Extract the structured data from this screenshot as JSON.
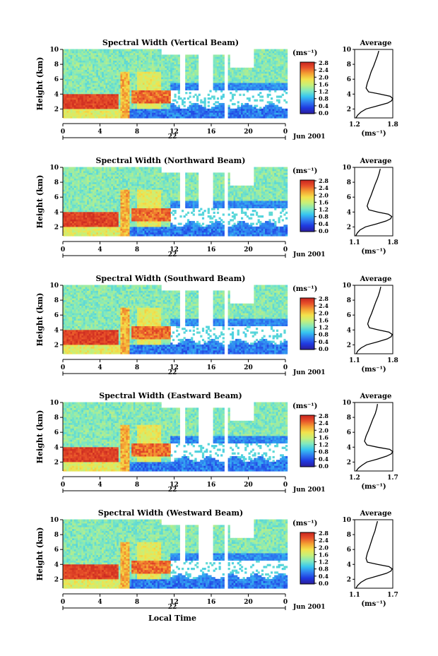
{
  "chart_data": {
    "type": "heatmap",
    "date_label": "Jun 2001",
    "day_label": "22",
    "xlabel": "Local Time",
    "ylabel": "Height (km)",
    "x_ticks": [
      "0",
      "4",
      "8",
      "12",
      "16",
      "20",
      "0"
    ],
    "y_ticks": [
      "2",
      "4",
      "6",
      "8",
      "10"
    ],
    "xlim": [
      0,
      24
    ],
    "ylim": [
      0.8,
      10
    ],
    "colorbar": {
      "unit_label": "(ms⁻¹)",
      "ticks": [
        "0.0",
        "0.4",
        "0.8",
        "1.2",
        "1.6",
        "2.0",
        "2.4",
        "2.8"
      ],
      "range": [
        0,
        3.0
      ],
      "colors": [
        "#2b1d9c",
        "#1f39e0",
        "#2f7bf0",
        "#37c6f0",
        "#7fe8c0",
        "#c6f07a",
        "#f3e24c",
        "#f4a233",
        "#e8522a",
        "#c8231f"
      ]
    },
    "average_title": "Average",
    "average_xlabel": "(ms⁻¹)",
    "panels": [
      {
        "title": "Spectral Width (Vertical Beam)",
        "avg_xlim": [
          1.2,
          1.8
        ],
        "avg_xticks": [
          "1.2",
          "1.8"
        ],
        "avg_profile": [
          [
            1.22,
            0.8
          ],
          [
            1.25,
            1.2
          ],
          [
            1.3,
            1.6
          ],
          [
            1.38,
            2.0
          ],
          [
            1.55,
            2.4
          ],
          [
            1.72,
            2.8
          ],
          [
            1.78,
            3.1
          ],
          [
            1.8,
            3.4
          ],
          [
            1.76,
            3.7
          ],
          [
            1.6,
            4.0
          ],
          [
            1.42,
            4.3
          ],
          [
            1.38,
            4.8
          ],
          [
            1.4,
            5.5
          ],
          [
            1.43,
            6.2
          ],
          [
            1.46,
            7.0
          ],
          [
            1.5,
            7.8
          ],
          [
            1.53,
            8.5
          ],
          [
            1.56,
            9.2
          ],
          [
            1.58,
            9.8
          ]
        ]
      },
      {
        "title": "Spectral Width (Northward Beam)",
        "avg_xlim": [
          1.1,
          1.8
        ],
        "avg_xticks": [
          "1.1",
          "1.8"
        ],
        "avg_profile": [
          [
            1.12,
            0.8
          ],
          [
            1.15,
            1.2
          ],
          [
            1.2,
            1.6
          ],
          [
            1.3,
            2.0
          ],
          [
            1.5,
            2.4
          ],
          [
            1.68,
            2.8
          ],
          [
            1.76,
            3.1
          ],
          [
            1.78,
            3.4
          ],
          [
            1.72,
            3.7
          ],
          [
            1.52,
            4.0
          ],
          [
            1.36,
            4.3
          ],
          [
            1.33,
            4.8
          ],
          [
            1.36,
            5.5
          ],
          [
            1.4,
            6.2
          ],
          [
            1.44,
            7.0
          ],
          [
            1.48,
            7.8
          ],
          [
            1.52,
            8.5
          ],
          [
            1.55,
            9.2
          ],
          [
            1.57,
            9.8
          ]
        ]
      },
      {
        "title": "Spectral Width (Southward Beam)",
        "avg_xlim": [
          1.1,
          1.8
        ],
        "avg_xticks": [
          "1.1",
          "1.8"
        ],
        "avg_profile": [
          [
            1.13,
            0.8
          ],
          [
            1.16,
            1.2
          ],
          [
            1.22,
            1.6
          ],
          [
            1.32,
            2.0
          ],
          [
            1.52,
            2.4
          ],
          [
            1.7,
            2.8
          ],
          [
            1.77,
            3.1
          ],
          [
            1.79,
            3.4
          ],
          [
            1.73,
            3.7
          ],
          [
            1.54,
            4.0
          ],
          [
            1.37,
            4.3
          ],
          [
            1.34,
            4.8
          ],
          [
            1.37,
            5.5
          ],
          [
            1.41,
            6.2
          ],
          [
            1.45,
            7.0
          ],
          [
            1.49,
            7.8
          ],
          [
            1.53,
            8.5
          ],
          [
            1.56,
            9.2
          ],
          [
            1.58,
            9.8
          ]
        ]
      },
      {
        "title": "Spectral Width (Eastward Beam)",
        "avg_xlim": [
          1.2,
          1.7
        ],
        "avg_xticks": [
          "1.2",
          "1.7"
        ],
        "avg_profile": [
          [
            1.22,
            0.8
          ],
          [
            1.25,
            1.2
          ],
          [
            1.3,
            1.6
          ],
          [
            1.36,
            2.0
          ],
          [
            1.5,
            2.4
          ],
          [
            1.62,
            2.8
          ],
          [
            1.68,
            3.1
          ],
          [
            1.7,
            3.4
          ],
          [
            1.66,
            3.7
          ],
          [
            1.5,
            4.0
          ],
          [
            1.36,
            4.3
          ],
          [
            1.33,
            4.8
          ],
          [
            1.35,
            5.5
          ],
          [
            1.38,
            6.2
          ],
          [
            1.41,
            7.0
          ],
          [
            1.44,
            7.8
          ],
          [
            1.47,
            8.5
          ],
          [
            1.49,
            9.2
          ],
          [
            1.5,
            9.8
          ]
        ]
      },
      {
        "title": "Spectral Width (Westward Beam)",
        "avg_xlim": [
          1.1,
          1.7
        ],
        "avg_xticks": [
          "1.1",
          "1.7"
        ],
        "avg_profile": [
          [
            1.12,
            0.8
          ],
          [
            1.15,
            1.2
          ],
          [
            1.2,
            1.6
          ],
          [
            1.28,
            2.0
          ],
          [
            1.44,
            2.4
          ],
          [
            1.6,
            2.8
          ],
          [
            1.67,
            3.1
          ],
          [
            1.69,
            3.4
          ],
          [
            1.64,
            3.7
          ],
          [
            1.46,
            4.0
          ],
          [
            1.3,
            4.3
          ],
          [
            1.28,
            4.8
          ],
          [
            1.3,
            5.5
          ],
          [
            1.33,
            6.2
          ],
          [
            1.36,
            7.0
          ],
          [
            1.39,
            7.8
          ],
          [
            1.42,
            8.5
          ],
          [
            1.44,
            9.2
          ],
          [
            1.46,
            9.8
          ]
        ]
      }
    ]
  }
}
